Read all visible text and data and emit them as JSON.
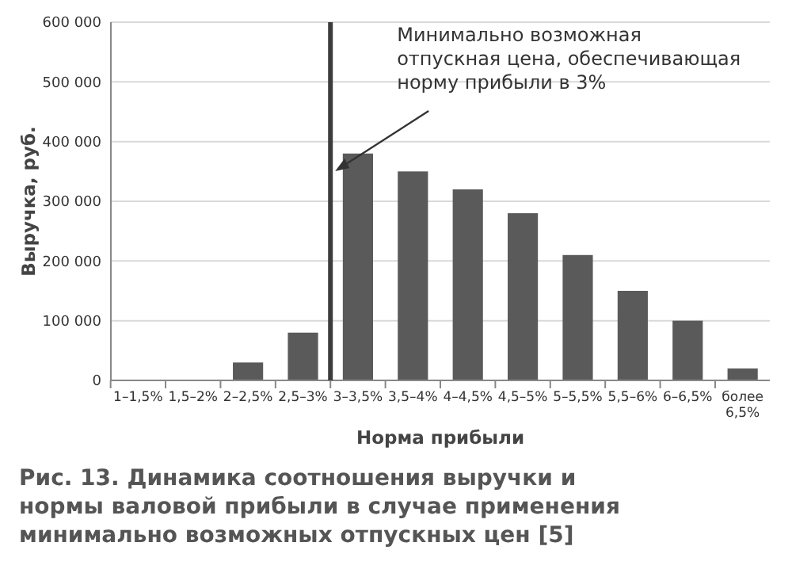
{
  "chart_data": {
    "type": "bar",
    "title": "Рис. 13. Динамика соотношения выручки и нормы валовой прибыли в случае применения минимально возможных отпускных цен [5]",
    "xlabel": "Норма прибыли",
    "ylabel": "Выручка, руб.",
    "categories": [
      "1–1,5%",
      "1,5–2%",
      "2–2,5%",
      "2,5–3%",
      "3–3,5%",
      "3,5–4%",
      "4–4,5%",
      "4,5–5%",
      "5–5,5%",
      "5,5–6%",
      "6–6,5%",
      "более 6,5%"
    ],
    "values": [
      0,
      0,
      30000,
      80000,
      380000,
      350000,
      320000,
      280000,
      210000,
      150000,
      100000,
      20000
    ],
    "color": "#5a5a5a",
    "ylim": [
      0,
      600000
    ],
    "yticks": [
      {
        "value": 0,
        "label": "0"
      },
      {
        "value": 100000,
        "label": "100 000"
      },
      {
        "value": 200000,
        "label": "200 000"
      },
      {
        "value": 300000,
        "label": "300 000"
      },
      {
        "value": 400000,
        "label": "400 000"
      },
      {
        "value": 500000,
        "label": "500 000"
      },
      {
        "value": 600000,
        "label": "600 000"
      }
    ],
    "grid": "y",
    "ref_lines": [
      {
        "axis": "x",
        "value": "3–3,5%",
        "label": "Минимально возможная\nотпускная цена, обеспечивающая\nнорму прибыли в 3%",
        "color": "#3c3c3c"
      }
    ]
  }
}
